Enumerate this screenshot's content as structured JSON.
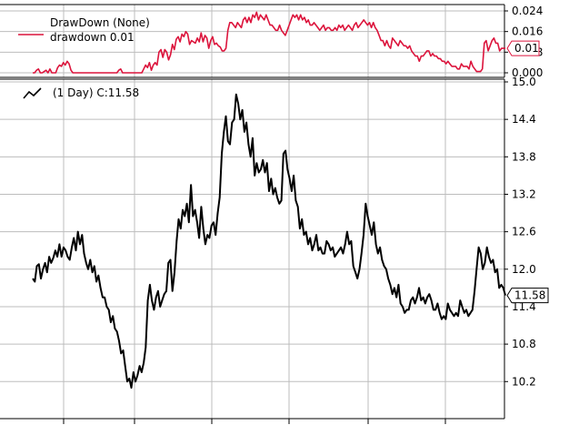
{
  "chart_data": [
    {
      "type": "line",
      "panel": "drawdown",
      "legend_placement": "top-left",
      "legend": [
        {
          "label": "DrawDown (None)",
          "color": "#dc143c"
        },
        {
          "label": "drawdown 0.01",
          "color": ""
        }
      ],
      "series": [
        {
          "name": "drawdown",
          "color": "#dc143c",
          "last_value_label": "0.01",
          "values": [
            0.0,
            0.0,
            0.001,
            0.0015,
            0.0,
            0.0,
            0.0005,
            0.001,
            0.0,
            0.0015,
            0.0,
            0.0,
            0.0,
            0.002,
            0.003,
            0.0025,
            0.004,
            0.003,
            0.0045,
            0.0035,
            0.001,
            0.0,
            0.0,
            0.0,
            0.0,
            0.0,
            0.0,
            0.0,
            0.0,
            0.0,
            0.0,
            0.0,
            0.0,
            0.0,
            0.0,
            0.0,
            0.0,
            0.0,
            0.0,
            0.0,
            0.0,
            0.0,
            0.0,
            0.0,
            0.0,
            0.001,
            0.0015,
            0.0,
            0.0,
            0.0,
            0.0,
            0.0,
            0.0,
            0.0,
            0.0,
            0.0,
            0.0,
            0.0,
            0.0015,
            0.003,
            0.002,
            0.004,
            0.001,
            0.003,
            0.004,
            0.003,
            0.008,
            0.009,
            0.006,
            0.009,
            0.008,
            0.005,
            0.007,
            0.011,
            0.009,
            0.013,
            0.014,
            0.012,
            0.015,
            0.014,
            0.016,
            0.015,
            0.011,
            0.0125,
            0.012,
            0.0115,
            0.0135,
            0.012,
            0.0155,
            0.012,
            0.0145,
            0.0135,
            0.0095,
            0.0125,
            0.014,
            0.011,
            0.0115,
            0.0105,
            0.01,
            0.0085,
            0.0085,
            0.0095,
            0.0165,
            0.0195,
            0.0195,
            0.0185,
            0.0175,
            0.0195,
            0.0185,
            0.0175,
            0.0205,
            0.0215,
            0.0195,
            0.0215,
            0.0195,
            0.0225,
            0.0215,
            0.0235,
            0.0205,
            0.0225,
            0.0215,
            0.0205,
            0.0225,
            0.0205,
            0.0185,
            0.0185,
            0.0175,
            0.0165,
            0.0165,
            0.0185,
            0.0165,
            0.0155,
            0.0145,
            0.0165,
            0.0185,
            0.0205,
            0.0225,
            0.0215,
            0.0225,
            0.0205,
            0.0225,
            0.0205,
            0.0215,
            0.0195,
            0.0205,
            0.0185,
            0.0185,
            0.0195,
            0.0185,
            0.0175,
            0.0165,
            0.0175,
            0.0185,
            0.0165,
            0.0175,
            0.0175,
            0.0165,
            0.0165,
            0.0175,
            0.0165,
            0.0185,
            0.0175,
            0.0185,
            0.0165,
            0.0175,
            0.0185,
            0.0175,
            0.0165,
            0.0185,
            0.0195,
            0.0175,
            0.0185,
            0.0195,
            0.0205,
            0.0195,
            0.0185,
            0.0195,
            0.0175,
            0.0195,
            0.0175,
            0.0165,
            0.0145,
            0.0125,
            0.0125,
            0.0105,
            0.0125,
            0.0105,
            0.0095,
            0.0135,
            0.0125,
            0.0115,
            0.0105,
            0.0125,
            0.0115,
            0.0105,
            0.0105,
            0.0095,
            0.0105,
            0.0085,
            0.0075,
            0.0065,
            0.0065,
            0.0045,
            0.0065,
            0.0065,
            0.0075,
            0.0085,
            0.0085,
            0.0065,
            0.0075,
            0.0065,
            0.0065,
            0.0055,
            0.0055,
            0.0045,
            0.0045,
            0.0035,
            0.0045,
            0.0035,
            0.0025,
            0.0025,
            0.0025,
            0.0015,
            0.0015,
            0.0035,
            0.0025,
            0.0025,
            0.0025,
            0.0015,
            0.0045,
            0.0025,
            0.0015,
            0.0005,
            0.0005,
            0.0005,
            0.0015,
            0.0115,
            0.0125,
            0.0085,
            0.0105,
            0.0125,
            0.0135,
            0.0115,
            0.0115,
            0.0085,
            0.0095,
            0.0095,
            0.0095
          ]
        }
      ],
      "y_axis": {
        "side": "right",
        "ylim": [
          0.0,
          0.024
        ],
        "ticks": [
          "0.024",
          "0.016",
          "0.008",
          "0.000"
        ]
      },
      "grid": true
    },
    {
      "type": "line",
      "panel": "price",
      "legend_placement": "top-left",
      "legend": [
        {
          "label": "(1 Day) C:11.58",
          "color": "#000000"
        }
      ],
      "series": [
        {
          "name": "close",
          "color": "#000000",
          "last_value_label": "11.58",
          "values": [
            11.85,
            11.8,
            12.05,
            12.08,
            11.85,
            12.0,
            12.1,
            11.95,
            12.2,
            12.1,
            12.18,
            12.3,
            12.2,
            12.4,
            12.2,
            12.35,
            12.3,
            12.2,
            12.15,
            12.35,
            12.5,
            12.3,
            12.6,
            12.4,
            12.55,
            12.25,
            12.1,
            12.0,
            12.15,
            11.95,
            12.05,
            11.8,
            11.9,
            11.7,
            11.55,
            11.55,
            11.4,
            11.35,
            11.15,
            11.25,
            11.05,
            11.0,
            10.85,
            10.65,
            10.7,
            10.45,
            10.2,
            10.25,
            10.1,
            10.35,
            10.2,
            10.3,
            10.45,
            10.35,
            10.5,
            10.75,
            11.5,
            11.75,
            11.5,
            11.35,
            11.55,
            11.65,
            11.4,
            11.5,
            11.6,
            11.65,
            12.1,
            12.15,
            11.65,
            11.95,
            12.45,
            12.8,
            12.65,
            12.95,
            12.85,
            13.05,
            12.75,
            13.35,
            12.85,
            12.95,
            12.75,
            12.5,
            13.0,
            12.65,
            12.4,
            12.55,
            12.5,
            12.7,
            12.75,
            12.55,
            12.9,
            13.15,
            13.85,
            14.2,
            14.45,
            14.05,
            14.0,
            14.35,
            14.4,
            14.8,
            14.65,
            14.4,
            14.55,
            14.2,
            14.35,
            14.0,
            13.8,
            14.1,
            13.5,
            13.7,
            13.55,
            13.6,
            13.75,
            13.55,
            13.7,
            13.25,
            13.45,
            13.2,
            13.3,
            13.15,
            13.05,
            13.1,
            13.85,
            13.9,
            13.6,
            13.45,
            13.25,
            13.5,
            13.1,
            13.0,
            12.65,
            12.8,
            12.55,
            12.6,
            12.4,
            12.5,
            12.3,
            12.4,
            12.55,
            12.3,
            12.35,
            12.25,
            12.25,
            12.45,
            12.4,
            12.3,
            12.35,
            12.2,
            12.25,
            12.3,
            12.35,
            12.25,
            12.4,
            12.6,
            12.4,
            12.45,
            12.05,
            11.95,
            11.85,
            12.0,
            12.25,
            12.55,
            13.05,
            12.85,
            12.7,
            12.55,
            12.75,
            12.4,
            12.25,
            12.35,
            12.15,
            12.05,
            12.0,
            11.85,
            11.75,
            11.6,
            11.7,
            11.55,
            11.75,
            11.45,
            11.4,
            11.3,
            11.35,
            11.35,
            11.5,
            11.55,
            11.45,
            11.55,
            11.7,
            11.5,
            11.55,
            11.45,
            11.55,
            11.6,
            11.5,
            11.35,
            11.35,
            11.45,
            11.3,
            11.2,
            11.25,
            11.2,
            11.45,
            11.35,
            11.3,
            11.25,
            11.3,
            11.25,
            11.5,
            11.4,
            11.3,
            11.35,
            11.25,
            11.3,
            11.35,
            11.65,
            12.0,
            12.35,
            12.25,
            12.0,
            12.1,
            12.35,
            12.2,
            12.1,
            12.15,
            11.95,
            12.0,
            11.7,
            11.75,
            11.7,
            11.58
          ]
        }
      ],
      "y_axis": {
        "side": "right",
        "ylim": [
          10.0,
          15.0
        ],
        "ticks": [
          "15.0",
          "14.4",
          "13.8",
          "13.2",
          "12.6",
          "12.0",
          "11.4",
          "10.8",
          "10.2"
        ]
      },
      "grid": true
    }
  ]
}
